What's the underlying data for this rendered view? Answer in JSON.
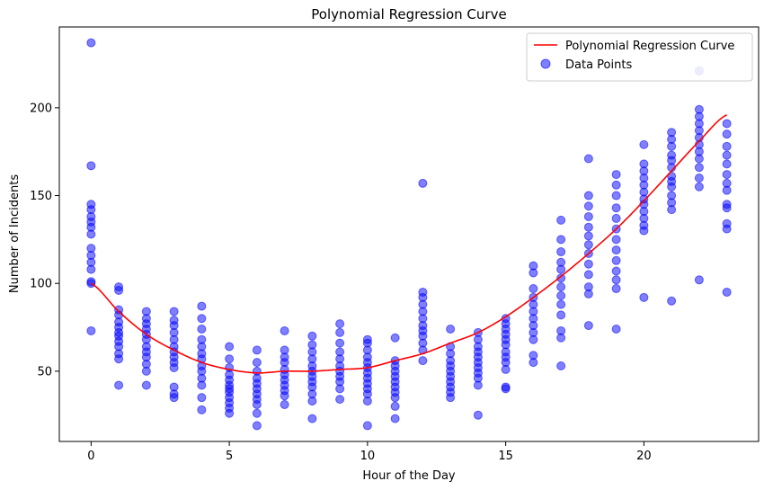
{
  "chart_data": {
    "type": "scatter",
    "title": "Polynomial Regression Curve",
    "xlabel": "Hour of the Day",
    "ylabel": "Number of Incidents",
    "xlim": [
      -1.15,
      24.15
    ],
    "ylim": [
      10,
      246
    ],
    "xticks": [
      0,
      5,
      10,
      15,
      20
    ],
    "yticks": [
      50,
      100,
      150,
      200
    ],
    "grid": false,
    "legend_position": "top-right",
    "colors": {
      "curve": "#ff0000",
      "points": "#0000ff"
    },
    "series": [
      {
        "name": "Polynomial Regression Curve",
        "kind": "line",
        "x": [
          0,
          1,
          2,
          3,
          4,
          5,
          6,
          7,
          8,
          9,
          10,
          11,
          12,
          13,
          14,
          15,
          16,
          17,
          18,
          19,
          20,
          21,
          22,
          23
        ],
        "y": [
          100,
          84,
          71,
          62,
          55,
          51,
          49,
          50,
          50,
          51,
          52,
          56,
          60,
          66,
          72,
          81,
          92,
          104,
          117,
          131,
          147,
          164,
          181,
          196
        ]
      },
      {
        "name": "Data Points",
        "kind": "scatter",
        "points": [
          [
            0,
            237
          ],
          [
            0,
            167
          ],
          [
            0,
            145
          ],
          [
            0,
            142
          ],
          [
            0,
            138
          ],
          [
            0,
            135
          ],
          [
            0,
            132
          ],
          [
            0,
            128
          ],
          [
            0,
            120
          ],
          [
            0,
            116
          ],
          [
            0,
            112
          ],
          [
            0,
            108
          ],
          [
            0,
            101
          ],
          [
            0,
            100
          ],
          [
            0,
            73
          ],
          [
            1,
            98
          ],
          [
            1,
            96
          ],
          [
            1,
            85
          ],
          [
            1,
            82
          ],
          [
            1,
            78
          ],
          [
            1,
            75
          ],
          [
            1,
            72
          ],
          [
            1,
            70
          ],
          [
            1,
            67
          ],
          [
            1,
            64
          ],
          [
            1,
            60
          ],
          [
            1,
            57
          ],
          [
            1,
            42
          ],
          [
            2,
            84
          ],
          [
            2,
            80
          ],
          [
            2,
            77
          ],
          [
            2,
            74
          ],
          [
            2,
            71
          ],
          [
            2,
            68
          ],
          [
            2,
            64
          ],
          [
            2,
            61
          ],
          [
            2,
            58
          ],
          [
            2,
            54
          ],
          [
            2,
            50
          ],
          [
            2,
            42
          ],
          [
            3,
            84
          ],
          [
            3,
            79
          ],
          [
            3,
            76
          ],
          [
            3,
            72
          ],
          [
            3,
            68
          ],
          [
            3,
            64
          ],
          [
            3,
            61
          ],
          [
            3,
            58
          ],
          [
            3,
            55
          ],
          [
            3,
            52
          ],
          [
            3,
            41
          ],
          [
            3,
            37
          ],
          [
            3,
            35
          ],
          [
            4,
            87
          ],
          [
            4,
            80
          ],
          [
            4,
            74
          ],
          [
            4,
            68
          ],
          [
            4,
            64
          ],
          [
            4,
            60
          ],
          [
            4,
            57
          ],
          [
            4,
            53
          ],
          [
            4,
            50
          ],
          [
            4,
            46
          ],
          [
            4,
            42
          ],
          [
            4,
            35
          ],
          [
            4,
            28
          ],
          [
            5,
            64
          ],
          [
            5,
            57
          ],
          [
            5,
            52
          ],
          [
            5,
            48
          ],
          [
            5,
            45
          ],
          [
            5,
            42
          ],
          [
            5,
            40
          ],
          [
            5,
            38
          ],
          [
            5,
            35
          ],
          [
            5,
            32
          ],
          [
            5,
            29
          ],
          [
            5,
            26
          ],
          [
            6,
            62
          ],
          [
            6,
            55
          ],
          [
            6,
            50
          ],
          [
            6,
            46
          ],
          [
            6,
            43
          ],
          [
            6,
            40
          ],
          [
            6,
            37
          ],
          [
            6,
            34
          ],
          [
            6,
            31
          ],
          [
            6,
            26
          ],
          [
            6,
            19
          ],
          [
            7,
            73
          ],
          [
            7,
            62
          ],
          [
            7,
            58
          ],
          [
            7,
            55
          ],
          [
            7,
            51
          ],
          [
            7,
            48
          ],
          [
            7,
            45
          ],
          [
            7,
            42
          ],
          [
            7,
            39
          ],
          [
            7,
            36
          ],
          [
            7,
            31
          ],
          [
            8,
            70
          ],
          [
            8,
            65
          ],
          [
            8,
            61
          ],
          [
            8,
            57
          ],
          [
            8,
            53
          ],
          [
            8,
            50
          ],
          [
            8,
            47
          ],
          [
            8,
            44
          ],
          [
            8,
            41
          ],
          [
            8,
            37
          ],
          [
            8,
            33
          ],
          [
            8,
            23
          ],
          [
            9,
            77
          ],
          [
            9,
            72
          ],
          [
            9,
            66
          ],
          [
            9,
            61
          ],
          [
            9,
            57
          ],
          [
            9,
            53
          ],
          [
            9,
            50
          ],
          [
            9,
            47
          ],
          [
            9,
            44
          ],
          [
            9,
            40
          ],
          [
            9,
            34
          ],
          [
            10,
            68
          ],
          [
            10,
            66
          ],
          [
            10,
            62
          ],
          [
            10,
            58
          ],
          [
            10,
            55
          ],
          [
            10,
            52
          ],
          [
            10,
            49
          ],
          [
            10,
            46
          ],
          [
            10,
            43
          ],
          [
            10,
            40
          ],
          [
            10,
            37
          ],
          [
            10,
            33
          ],
          [
            10,
            19
          ],
          [
            11,
            69
          ],
          [
            11,
            56
          ],
          [
            11,
            53
          ],
          [
            11,
            50
          ],
          [
            11,
            47
          ],
          [
            11,
            44
          ],
          [
            11,
            41
          ],
          [
            11,
            38
          ],
          [
            11,
            35
          ],
          [
            11,
            30
          ],
          [
            11,
            23
          ],
          [
            12,
            157
          ],
          [
            12,
            95
          ],
          [
            12,
            92
          ],
          [
            12,
            88
          ],
          [
            12,
            84
          ],
          [
            12,
            80
          ],
          [
            12,
            76
          ],
          [
            12,
            73
          ],
          [
            12,
            70
          ],
          [
            12,
            66
          ],
          [
            12,
            62
          ],
          [
            12,
            56
          ],
          [
            13,
            74
          ],
          [
            13,
            64
          ],
          [
            13,
            60
          ],
          [
            13,
            56
          ],
          [
            13,
            53
          ],
          [
            13,
            50
          ],
          [
            13,
            47
          ],
          [
            13,
            44
          ],
          [
            13,
            41
          ],
          [
            13,
            38
          ],
          [
            13,
            35
          ],
          [
            14,
            72
          ],
          [
            14,
            68
          ],
          [
            14,
            64
          ],
          [
            14,
            61
          ],
          [
            14,
            58
          ],
          [
            14,
            55
          ],
          [
            14,
            52
          ],
          [
            14,
            49
          ],
          [
            14,
            46
          ],
          [
            14,
            42
          ],
          [
            14,
            25
          ],
          [
            15,
            80
          ],
          [
            15,
            77
          ],
          [
            15,
            74
          ],
          [
            15,
            71
          ],
          [
            15,
            68
          ],
          [
            15,
            65
          ],
          [
            15,
            61
          ],
          [
            15,
            58
          ],
          [
            15,
            55
          ],
          [
            15,
            51
          ],
          [
            15,
            41
          ],
          [
            15,
            40
          ],
          [
            16,
            110
          ],
          [
            16,
            106
          ],
          [
            16,
            97
          ],
          [
            16,
            92
          ],
          [
            16,
            88
          ],
          [
            16,
            84
          ],
          [
            16,
            80
          ],
          [
            16,
            76
          ],
          [
            16,
            72
          ],
          [
            16,
            68
          ],
          [
            16,
            59
          ],
          [
            16,
            55
          ],
          [
            17,
            136
          ],
          [
            17,
            125
          ],
          [
            17,
            118
          ],
          [
            17,
            112
          ],
          [
            17,
            108
          ],
          [
            17,
            103
          ],
          [
            17,
            98
          ],
          [
            17,
            93
          ],
          [
            17,
            88
          ],
          [
            17,
            82
          ],
          [
            17,
            73
          ],
          [
            17,
            69
          ],
          [
            17,
            53
          ],
          [
            18,
            171
          ],
          [
            18,
            150
          ],
          [
            18,
            144
          ],
          [
            18,
            138
          ],
          [
            18,
            132
          ],
          [
            18,
            127
          ],
          [
            18,
            122
          ],
          [
            18,
            117
          ],
          [
            18,
            111
          ],
          [
            18,
            105
          ],
          [
            18,
            98
          ],
          [
            18,
            94
          ],
          [
            18,
            76
          ],
          [
            19,
            162
          ],
          [
            19,
            156
          ],
          [
            19,
            150
          ],
          [
            19,
            143
          ],
          [
            19,
            137
          ],
          [
            19,
            131
          ],
          [
            19,
            125
          ],
          [
            19,
            119
          ],
          [
            19,
            113
          ],
          [
            19,
            107
          ],
          [
            19,
            102
          ],
          [
            19,
            97
          ],
          [
            19,
            74
          ],
          [
            20,
            179
          ],
          [
            20,
            168
          ],
          [
            20,
            164
          ],
          [
            20,
            160
          ],
          [
            20,
            156
          ],
          [
            20,
            152
          ],
          [
            20,
            148
          ],
          [
            20,
            145
          ],
          [
            20,
            141
          ],
          [
            20,
            137
          ],
          [
            20,
            133
          ],
          [
            20,
            130
          ],
          [
            20,
            92
          ],
          [
            21,
            186
          ],
          [
            21,
            182
          ],
          [
            21,
            178
          ],
          [
            21,
            173
          ],
          [
            21,
            170
          ],
          [
            21,
            166
          ],
          [
            21,
            161
          ],
          [
            21,
            158
          ],
          [
            21,
            155
          ],
          [
            21,
            150
          ],
          [
            21,
            146
          ],
          [
            21,
            142
          ],
          [
            21,
            90
          ],
          [
            22,
            221
          ],
          [
            22,
            199
          ],
          [
            22,
            195
          ],
          [
            22,
            191
          ],
          [
            22,
            187
          ],
          [
            22,
            183
          ],
          [
            22,
            179
          ],
          [
            22,
            175
          ],
          [
            22,
            171
          ],
          [
            22,
            166
          ],
          [
            22,
            160
          ],
          [
            22,
            155
          ],
          [
            22,
            102
          ],
          [
            23,
            191
          ],
          [
            23,
            185
          ],
          [
            23,
            178
          ],
          [
            23,
            173
          ],
          [
            23,
            168
          ],
          [
            23,
            162
          ],
          [
            23,
            157
          ],
          [
            23,
            153
          ],
          [
            23,
            145
          ],
          [
            23,
            143
          ],
          [
            23,
            134
          ],
          [
            23,
            131
          ],
          [
            23,
            95
          ]
        ]
      }
    ]
  }
}
